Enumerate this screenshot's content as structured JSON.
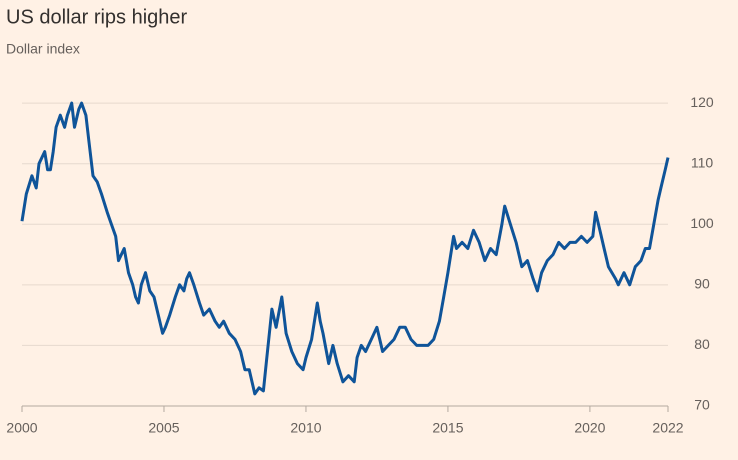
{
  "chart_data": {
    "type": "line",
    "title": "US dollar rips higher",
    "subtitle": "Dollar index",
    "color": "#0f5499",
    "grid": true,
    "xlim": [
      2000,
      2022.75
    ],
    "xticks": [
      2000,
      2005,
      2010,
      2015,
      2020,
      {
        "value": 2022.75,
        "label": "2022"
      }
    ],
    "ylim": [
      70,
      122
    ],
    "yticks": [
      70,
      80,
      90,
      100,
      110,
      120
    ],
    "x": [
      2000.0,
      2000.15,
      2000.35,
      2000.5,
      2000.6,
      2000.8,
      2000.9,
      2001.0,
      2001.1,
      2001.2,
      2001.35,
      2001.5,
      2001.6,
      2001.75,
      2001.85,
      2002.0,
      2002.1,
      2002.25,
      2002.35,
      2002.5,
      2002.65,
      2002.8,
      2003.0,
      2003.15,
      2003.3,
      2003.4,
      2003.6,
      2003.75,
      2003.9,
      2004.0,
      2004.1,
      2004.2,
      2004.35,
      2004.5,
      2004.65,
      2004.8,
      2004.95,
      2005.05,
      2005.2,
      2005.4,
      2005.55,
      2005.7,
      2005.8,
      2005.9,
      2006.05,
      2006.25,
      2006.4,
      2006.6,
      2006.8,
      2006.95,
      2007.1,
      2007.3,
      2007.5,
      2007.7,
      2007.85,
      2008.0,
      2008.2,
      2008.35,
      2008.5,
      2008.6,
      2008.8,
      2008.95,
      2009.15,
      2009.3,
      2009.5,
      2009.7,
      2009.9,
      2010.0,
      2010.2,
      2010.4,
      2010.5,
      2010.6,
      2010.8,
      2010.95,
      2011.1,
      2011.3,
      2011.5,
      2011.7,
      2011.8,
      2011.95,
      2012.1,
      2012.3,
      2012.5,
      2012.7,
      2012.9,
      2013.1,
      2013.3,
      2013.5,
      2013.7,
      2013.9,
      2014.1,
      2014.3,
      2014.5,
      2014.7,
      2014.85,
      2015.0,
      2015.2,
      2015.3,
      2015.5,
      2015.7,
      2015.9,
      2016.1,
      2016.3,
      2016.5,
      2016.7,
      2016.9,
      2017.0,
      2017.2,
      2017.4,
      2017.6,
      2017.8,
      2018.0,
      2018.15,
      2018.3,
      2018.5,
      2018.7,
      2018.9,
      2019.1,
      2019.3,
      2019.5,
      2019.7,
      2019.9,
      2020.1,
      2020.2,
      2020.35,
      2020.5,
      2020.65,
      2020.9,
      2021.0,
      2021.2,
      2021.4,
      2021.6,
      2021.8,
      2021.95,
      2022.1,
      2022.25,
      2022.4,
      2022.5,
      2022.65,
      2022.75
    ],
    "values": [
      100.5,
      105,
      108,
      106,
      110,
      112,
      109,
      109,
      112,
      116,
      118,
      116,
      118,
      120,
      116,
      119,
      120,
      118,
      114,
      108,
      107,
      105,
      102,
      100,
      98,
      94,
      96,
      92,
      90,
      88,
      87,
      90,
      92,
      89,
      88,
      85,
      82,
      83,
      85,
      88,
      90,
      89,
      91,
      92,
      90,
      87,
      85,
      86,
      84,
      83,
      84,
      82,
      81,
      79,
      76,
      76,
      72,
      73,
      72.5,
      77,
      86,
      83,
      88,
      82,
      79,
      77,
      76,
      78,
      81,
      87,
      84,
      82,
      77,
      80,
      77,
      74,
      75,
      74,
      78,
      80,
      79,
      81,
      83,
      79,
      80,
      81,
      83,
      83,
      81,
      80,
      80,
      80,
      81,
      84,
      88,
      92,
      98,
      96,
      97,
      96,
      99,
      97,
      94,
      96,
      95,
      100,
      103,
      100,
      97,
      93,
      94,
      91,
      89,
      92,
      94,
      95,
      97,
      96,
      97,
      97,
      98,
      97,
      98,
      102,
      99,
      96,
      93,
      91,
      90,
      92,
      90,
      93,
      94,
      96,
      96,
      100,
      104,
      106,
      109,
      111
    ]
  }
}
